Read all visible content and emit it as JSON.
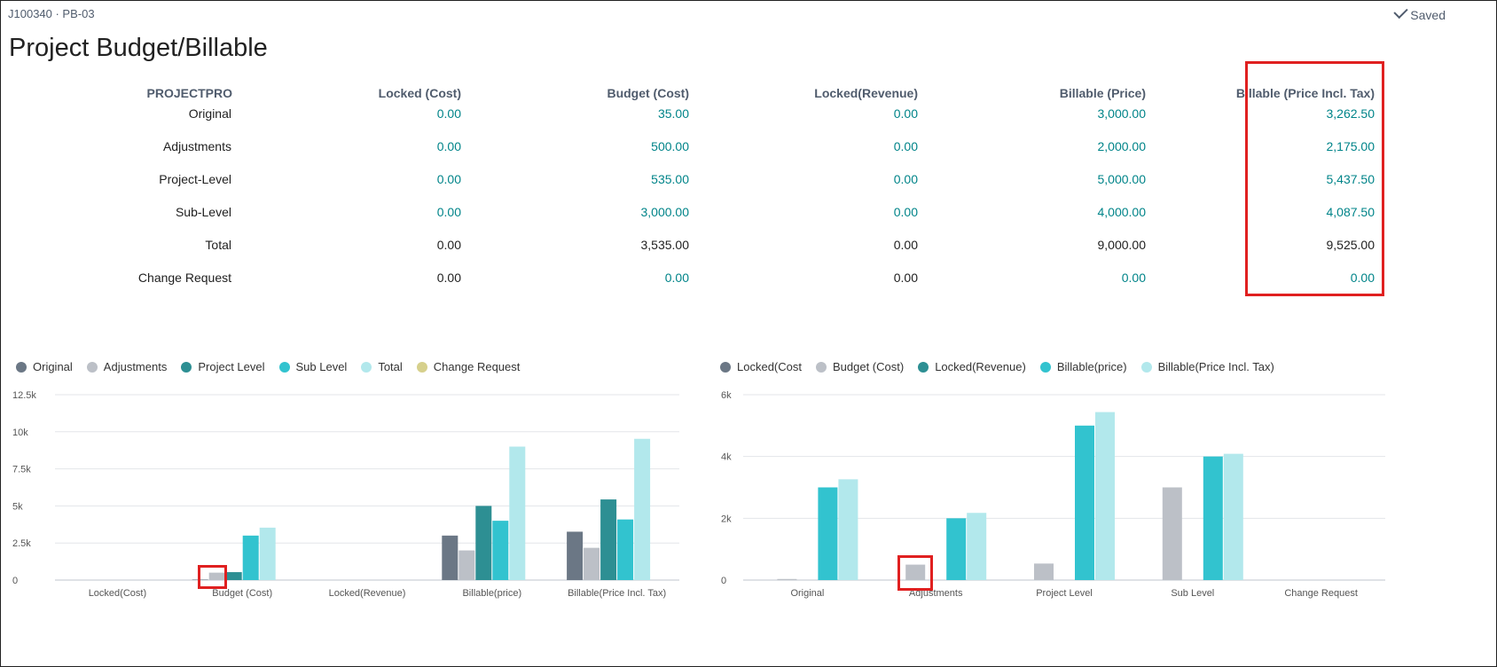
{
  "header": {
    "breadcrumb": "J100340 · PB-03",
    "saved_label": "Saved",
    "title": "Project Budget/Billable"
  },
  "table": {
    "corner_label": "PROJECTPRO",
    "columns": [
      "Locked (Cost)",
      "Budget (Cost)",
      "Locked(Revenue)",
      "Billable (Price)",
      "Billable (Price Incl. Tax)"
    ],
    "rows": [
      {
        "label": "Original",
        "values": [
          "0.00",
          "35.00",
          "0.00",
          "3,000.00",
          "3,262.50"
        ],
        "links": [
          true,
          true,
          true,
          true,
          true
        ]
      },
      {
        "label": "Adjustments",
        "values": [
          "0.00",
          "500.00",
          "0.00",
          "2,000.00",
          "2,175.00"
        ],
        "links": [
          true,
          true,
          true,
          true,
          true
        ]
      },
      {
        "label": "Project-Level",
        "values": [
          "0.00",
          "535.00",
          "0.00",
          "5,000.00",
          "5,437.50"
        ],
        "links": [
          true,
          true,
          true,
          true,
          true
        ]
      },
      {
        "label": "Sub-Level",
        "values": [
          "0.00",
          "3,000.00",
          "0.00",
          "4,000.00",
          "4,087.50"
        ],
        "links": [
          true,
          true,
          true,
          true,
          true
        ]
      },
      {
        "label": "Total",
        "values": [
          "0.00",
          "3,535.00",
          "0.00",
          "9,000.00",
          "9,525.00"
        ],
        "links": [
          false,
          false,
          false,
          false,
          false
        ]
      },
      {
        "label": "Change Request",
        "values": [
          "0.00",
          "0.00",
          "0.00",
          "0.00",
          "0.00"
        ],
        "links": [
          false,
          true,
          false,
          true,
          true
        ]
      }
    ]
  },
  "colors": {
    "link": "#008489",
    "highlight": "#e02020",
    "series": [
      "#6b7785",
      "#bcc0c7",
      "#2d8f93",
      "#32c3cf",
      "#b2e8ec",
      "#d6d08c"
    ]
  },
  "chart_data": [
    {
      "type": "bar",
      "title": "",
      "categories": [
        "Locked(Cost)",
        "Budget (Cost)",
        "Locked(Revenue)",
        "Billable(price)",
        "Billable(Price Incl. Tax)"
      ],
      "series": [
        {
          "name": "Original",
          "values": [
            0,
            35,
            0,
            3000,
            3262.5
          ]
        },
        {
          "name": "Adjustments",
          "values": [
            0,
            500,
            0,
            2000,
            2175
          ]
        },
        {
          "name": "Project Level",
          "values": [
            0,
            535,
            0,
            5000,
            5437.5
          ]
        },
        {
          "name": "Sub Level",
          "values": [
            0,
            3000,
            0,
            4000,
            4087.5
          ]
        },
        {
          "name": "Total",
          "values": [
            0,
            3535,
            0,
            9000,
            9525
          ]
        },
        {
          "name": "Change Request",
          "values": [
            0,
            0,
            0,
            0,
            0
          ]
        }
      ],
      "yticks": [
        "0",
        "2.5k",
        "5k",
        "7.5k",
        "10k",
        "12.5k"
      ],
      "ylim": [
        0,
        12500
      ],
      "grid": true,
      "legend": "top-left"
    },
    {
      "type": "bar",
      "title": "",
      "categories": [
        "Original",
        "Adjustments",
        "Project Level",
        "Sub Level",
        "Change Request"
      ],
      "series": [
        {
          "name": "Locked(Cost",
          "values": [
            0,
            0,
            0,
            0,
            0
          ]
        },
        {
          "name": "Budget (Cost)",
          "values": [
            35,
            500,
            535,
            3000,
            0
          ]
        },
        {
          "name": "Locked(Revenue)",
          "values": [
            0,
            0,
            0,
            0,
            0
          ]
        },
        {
          "name": "Billable(price)",
          "values": [
            3000,
            2000,
            5000,
            4000,
            0
          ]
        },
        {
          "name": "Billable(Price Incl. Tax)",
          "values": [
            3262.5,
            2175,
            5437.5,
            4087.5,
            0
          ]
        }
      ],
      "yticks": [
        "0",
        "2k",
        "4k",
        "6k"
      ],
      "ylim": [
        0,
        6000
      ],
      "grid": true,
      "legend": "top-left"
    }
  ]
}
